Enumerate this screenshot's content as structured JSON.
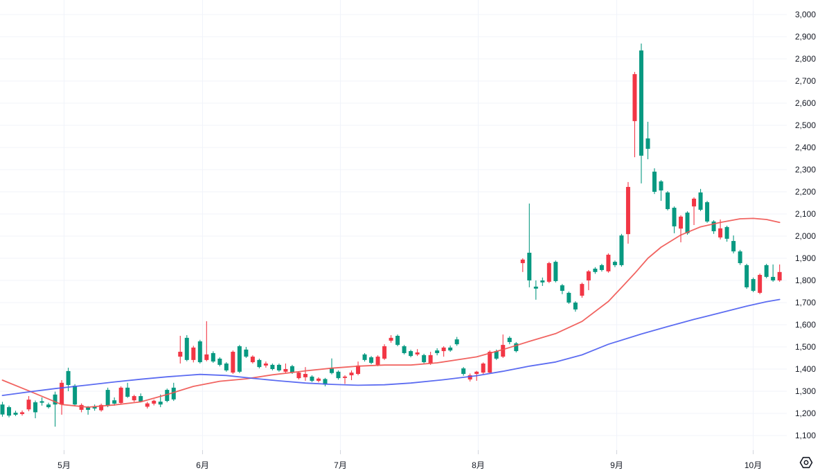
{
  "chart_data": {
    "type": "candlestick",
    "title": "",
    "xlabel": "",
    "ylabel": "",
    "grid": true,
    "legend_position": "none",
    "price_axis": {
      "min": 1100,
      "max": 3000,
      "step": 100
    },
    "time_axis": {
      "months": [
        {
          "label": "5月",
          "i": 9.3
        },
        {
          "label": "6月",
          "i": 30.3
        },
        {
          "label": "7月",
          "i": 51.3
        },
        {
          "label": "8月",
          "i": 72.2
        },
        {
          "label": "9月",
          "i": 93.2
        },
        {
          "label": "10月",
          "i": 113.9
        }
      ]
    },
    "colors": {
      "up": "#089981",
      "down": "#f23645",
      "ma_fast": "#ef5350",
      "ma_slow": "#4a5cf0",
      "background": "#ffffff",
      "grid": "#f0f3fa",
      "text": "#131722"
    },
    "candles": [
      [
        1195,
        1252,
        1185,
        1240
      ],
      [
        1190,
        1235,
        1182,
        1228
      ],
      [
        1194,
        1212,
        1188,
        1203
      ],
      [
        1205,
        1213,
        1190,
        1197
      ],
      [
        1262,
        1278,
        1210,
        1218
      ],
      [
        1205,
        1258,
        1178,
        1250
      ],
      [
        1248,
        1272,
        1235,
        1255
      ],
      [
        1228,
        1248,
        1222,
        1240
      ],
      [
        1240,
        1298,
        1140,
        1285
      ],
      [
        1338,
        1350,
        1194,
        1240
      ],
      [
        1328,
        1406,
        1300,
        1391
      ],
      [
        1240,
        1332,
        1232,
        1325
      ],
      [
        1238,
        1245,
        1205,
        1216
      ],
      [
        1216,
        1233,
        1194,
        1228
      ],
      [
        1222,
        1240,
        1212,
        1230
      ],
      [
        1238,
        1244,
        1208,
        1214
      ],
      [
        1234,
        1316,
        1228,
        1306
      ],
      [
        1244,
        1272,
        1235,
        1259
      ],
      [
        1316,
        1322,
        1240,
        1247
      ],
      [
        1275,
        1338,
        1270,
        1316
      ],
      [
        1278,
        1284,
        1252,
        1259
      ],
      [
        1253,
        1290,
        1250,
        1278
      ],
      [
        1245,
        1252,
        1222,
        1230
      ],
      [
        1257,
        1262,
        1236,
        1244
      ],
      [
        1240,
        1285,
        1228,
        1253
      ],
      [
        1256,
        1312,
        1250,
        1306
      ],
      [
        1263,
        1338,
        1256,
        1316
      ],
      [
        1478,
        1550,
        1425,
        1456
      ],
      [
        1441,
        1553,
        1435,
        1541
      ],
      [
        1497,
        1505,
        1430,
        1441
      ],
      [
        1431,
        1532,
        1425,
        1525
      ],
      [
        1466,
        1616,
        1435,
        1441
      ],
      [
        1434,
        1480,
        1428,
        1472
      ],
      [
        1419,
        1453,
        1412,
        1447
      ],
      [
        1394,
        1431,
        1388,
        1425
      ],
      [
        1478,
        1484,
        1378,
        1384
      ],
      [
        1388,
        1509,
        1382,
        1503
      ],
      [
        1456,
        1500,
        1450,
        1488
      ],
      [
        1456,
        1462,
        1425,
        1431
      ],
      [
        1409,
        1447,
        1403,
        1441
      ],
      [
        1425,
        1434,
        1406,
        1416
      ],
      [
        1400,
        1425,
        1394,
        1419
      ],
      [
        1394,
        1425,
        1388,
        1419
      ],
      [
        1400,
        1425,
        1382,
        1388
      ],
      [
        1384,
        1419,
        1378,
        1413
      ],
      [
        1384,
        1390,
        1353,
        1359
      ],
      [
        1378,
        1409,
        1347,
        1363
      ],
      [
        1347,
        1372,
        1341,
        1366
      ],
      [
        1357,
        1363,
        1340,
        1347
      ],
      [
        1330,
        1360,
        1322,
        1355
      ],
      [
        1382,
        1448,
        1376,
        1403
      ],
      [
        1359,
        1394,
        1352,
        1388
      ],
      [
        1366,
        1372,
        1333,
        1360
      ],
      [
        1384,
        1394,
        1350,
        1372
      ],
      [
        1416,
        1434,
        1372,
        1378
      ],
      [
        1441,
        1472,
        1434,
        1466
      ],
      [
        1428,
        1459,
        1422,
        1453
      ],
      [
        1456,
        1462,
        1413,
        1419
      ],
      [
        1503,
        1512,
        1441,
        1447
      ],
      [
        1541,
        1553,
        1519,
        1528
      ],
      [
        1509,
        1556,
        1503,
        1550
      ],
      [
        1472,
        1509,
        1466,
        1503
      ],
      [
        1459,
        1487,
        1453,
        1481
      ],
      [
        1475,
        1490,
        1459,
        1466
      ],
      [
        1431,
        1469,
        1425,
        1463
      ],
      [
        1463,
        1478,
        1419,
        1425
      ],
      [
        1472,
        1494,
        1462,
        1484
      ],
      [
        1497,
        1503,
        1456,
        1481
      ],
      [
        1484,
        1506,
        1478,
        1497
      ],
      [
        1512,
        1545,
        1505,
        1534
      ],
      [
        1378,
        1409,
        1370,
        1403
      ],
      [
        1372,
        1380,
        1344,
        1353
      ],
      [
        1388,
        1392,
        1347,
        1378
      ],
      [
        1425,
        1430,
        1378,
        1384
      ],
      [
        1478,
        1484,
        1380,
        1384
      ],
      [
        1447,
        1488,
        1441,
        1481
      ],
      [
        1509,
        1556,
        1450,
        1456
      ],
      [
        1522,
        1548,
        1512,
        1541
      ],
      [
        1481,
        1522,
        1475,
        1516
      ],
      [
        1894,
        1900,
        1838,
        1878
      ],
      [
        1800,
        2147,
        1769,
        1925
      ],
      [
        1763,
        1800,
        1713,
        1772
      ],
      [
        1791,
        1813,
        1775,
        1800
      ],
      [
        1878,
        1884,
        1788,
        1794
      ],
      [
        1797,
        1890,
        1791,
        1884
      ],
      [
        1753,
        1784,
        1738,
        1778
      ],
      [
        1700,
        1750,
        1694,
        1744
      ],
      [
        1669,
        1706,
        1659,
        1700
      ],
      [
        1784,
        1790,
        1722,
        1731
      ],
      [
        1841,
        1847,
        1756,
        1800
      ],
      [
        1838,
        1860,
        1830,
        1853
      ],
      [
        1847,
        1875,
        1840,
        1869
      ],
      [
        1916,
        1922,
        1835,
        1841
      ],
      [
        1869,
        1890,
        1860,
        1884
      ],
      [
        1869,
        2010,
        1862,
        2003
      ],
      [
        2222,
        2244,
        1966,
        2009
      ],
      [
        2731,
        2741,
        2356,
        2519
      ],
      [
        2363,
        2869,
        2238,
        2838
      ],
      [
        2394,
        2516,
        2347,
        2441
      ],
      [
        2200,
        2306,
        2190,
        2291
      ],
      [
        2206,
        2253,
        2159,
        2247
      ],
      [
        2122,
        2203,
        2116,
        2197
      ],
      [
        2044,
        2134,
        2013,
        2128
      ],
      [
        2088,
        2094,
        1972,
        2034
      ],
      [
        2013,
        2112,
        2006,
        2106
      ],
      [
        2169,
        2175,
        2050,
        2134
      ],
      [
        2119,
        2213,
        2113,
        2197
      ],
      [
        2066,
        2159,
        2060,
        2153
      ],
      [
        2022,
        2072,
        2010,
        2066
      ],
      [
        2035,
        2075,
        1985,
        1994
      ],
      [
        1988,
        2047,
        1975,
        2041
      ],
      [
        1931,
        2003,
        1922,
        1978
      ],
      [
        1878,
        1938,
        1870,
        1931
      ],
      [
        1769,
        1875,
        1762,
        1869
      ],
      [
        1753,
        1813,
        1747,
        1806
      ],
      [
        1825,
        1831,
        1738,
        1744
      ],
      [
        1816,
        1875,
        1810,
        1869
      ],
      [
        1800,
        1872,
        1794,
        1816
      ],
      [
        1838,
        1872,
        1794,
        1800
      ]
    ],
    "series": [
      {
        "name": "ma-fast-red",
        "points": [
          [
            0,
            1350
          ],
          [
            4,
            1302
          ],
          [
            9,
            1240
          ],
          [
            13,
            1228
          ],
          [
            17,
            1238
          ],
          [
            21,
            1252
          ],
          [
            25,
            1285
          ],
          [
            29,
            1322
          ],
          [
            33,
            1345
          ],
          [
            37,
            1356
          ],
          [
            41,
            1374
          ],
          [
            46,
            1392
          ],
          [
            50,
            1404
          ],
          [
            54,
            1413
          ],
          [
            58,
            1418
          ],
          [
            62,
            1418
          ],
          [
            66,
            1428
          ],
          [
            72,
            1455
          ],
          [
            76,
            1488
          ],
          [
            80,
            1525
          ],
          [
            84,
            1560
          ],
          [
            88,
            1615
          ],
          [
            92,
            1705
          ],
          [
            94,
            1768
          ],
          [
            96,
            1832
          ],
          [
            98,
            1900
          ],
          [
            100,
            1950
          ],
          [
            103,
            2005
          ],
          [
            106,
            2042
          ],
          [
            109,
            2062
          ],
          [
            112,
            2078
          ],
          [
            114,
            2080
          ],
          [
            116,
            2075
          ],
          [
            118,
            2062
          ]
        ]
      },
      {
        "name": "ma-slow-blue",
        "points": [
          [
            0,
            1281
          ],
          [
            4,
            1297
          ],
          [
            8,
            1312
          ],
          [
            13,
            1328
          ],
          [
            17,
            1342
          ],
          [
            21,
            1354
          ],
          [
            25,
            1365
          ],
          [
            30,
            1376
          ],
          [
            34,
            1371
          ],
          [
            38,
            1358
          ],
          [
            42,
            1347
          ],
          [
            46,
            1337
          ],
          [
            50,
            1331
          ],
          [
            54,
            1327
          ],
          [
            58,
            1329
          ],
          [
            62,
            1337
          ],
          [
            67,
            1352
          ],
          [
            72,
            1370
          ],
          [
            76,
            1390
          ],
          [
            80,
            1413
          ],
          [
            84,
            1432
          ],
          [
            88,
            1464
          ],
          [
            92,
            1512
          ],
          [
            97,
            1558
          ],
          [
            101,
            1592
          ],
          [
            105,
            1624
          ],
          [
            109,
            1654
          ],
          [
            113,
            1684
          ],
          [
            116,
            1704
          ],
          [
            118,
            1714
          ]
        ]
      }
    ],
    "icon": {
      "name": "hexagon-settings"
    }
  }
}
